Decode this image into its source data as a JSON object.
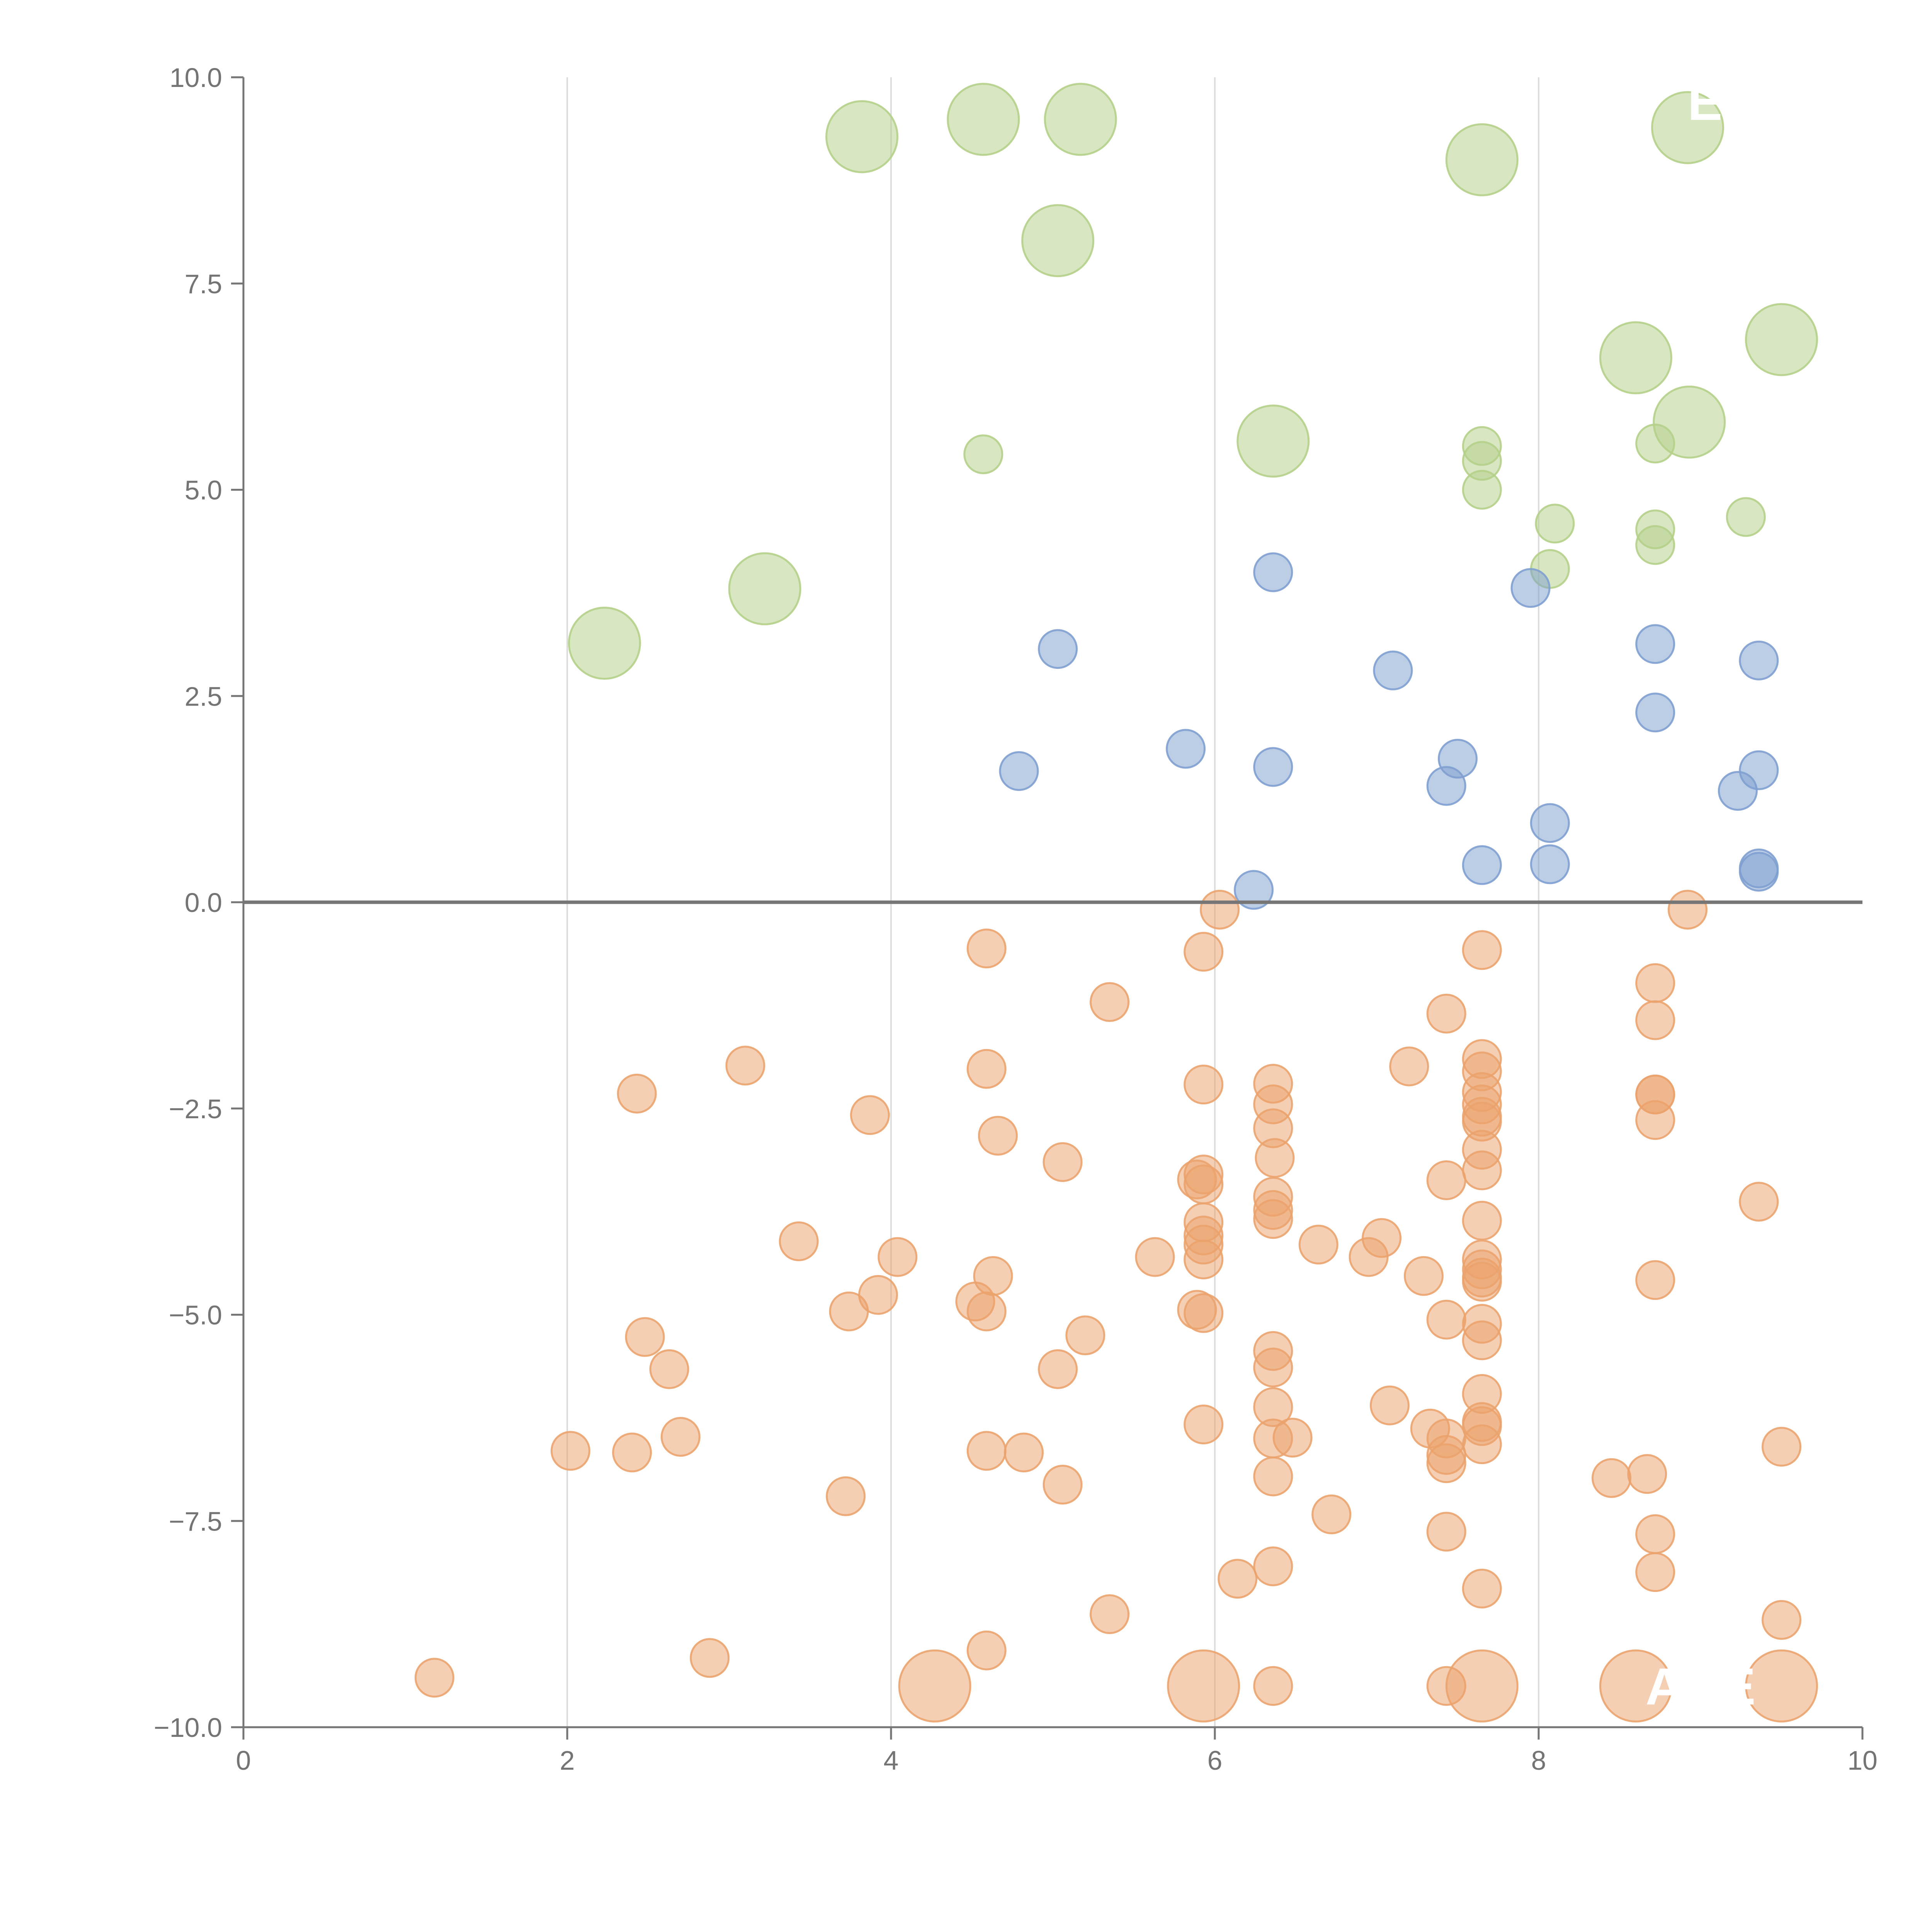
{
  "chart_data": {
    "type": "scatter",
    "title": "",
    "xlabel": "",
    "ylabel": "",
    "xlim": [
      0,
      10
    ],
    "ylim": [
      -10,
      10
    ],
    "x_ticks": [
      0,
      2,
      4,
      6,
      8,
      10
    ],
    "x_tick_labels": [
      "0",
      "2",
      "4",
      "6",
      "8",
      "10"
    ],
    "y_ticks": [
      10,
      7.5,
      5,
      2.5,
      0,
      -2.5,
      -5,
      -7.5,
      -10
    ],
    "y_tick_labels": [
      "10.0",
      "7.5",
      "5.0",
      "2.5",
      "0.0",
      "−2.5",
      "−5.0",
      "−7.5",
      "−10.0"
    ],
    "grid": "vertical",
    "zero_line": true,
    "colors": {
      "green": "#b5d08a",
      "blue": "#7fa0d0",
      "orange": "#eba36e",
      "axis": "#767676",
      "grid": "#dcdcdc"
    },
    "series": [
      {
        "color": "green",
        "points": [
          [
            3.82,
            9.28,
            "L"
          ],
          [
            4.57,
            9.49,
            "L"
          ],
          [
            5.17,
            9.49,
            "L"
          ],
          [
            5.03,
            8.02,
            "L"
          ],
          [
            7.65,
            9.0,
            "L"
          ],
          [
            8.92,
            9.39,
            "L"
          ],
          [
            8.6,
            6.6,
            "L"
          ],
          [
            9.5,
            6.82,
            "L"
          ],
          [
            8.93,
            5.82,
            "L"
          ],
          [
            6.36,
            5.59,
            "L"
          ],
          [
            3.22,
            3.8,
            "L"
          ],
          [
            2.23,
            3.14,
            "L"
          ],
          [
            4.57,
            5.43,
            "S"
          ],
          [
            7.65,
            5.53,
            "S"
          ],
          [
            7.65,
            5.35,
            "S"
          ],
          [
            7.65,
            5.0,
            "S"
          ],
          [
            8.72,
            5.56,
            "S"
          ],
          [
            8.1,
            4.59,
            "S"
          ],
          [
            8.07,
            4.04,
            "S"
          ],
          [
            8.72,
            4.52,
            "S"
          ],
          [
            8.72,
            4.33,
            "S"
          ],
          [
            9.28,
            4.67,
            "S"
          ]
        ]
      },
      {
        "color": "blue",
        "points": [
          [
            6.36,
            4.0
          ],
          [
            7.95,
            3.81
          ],
          [
            5.03,
            3.07
          ],
          [
            7.1,
            2.81
          ],
          [
            8.72,
            3.13
          ],
          [
            9.36,
            2.93
          ],
          [
            8.72,
            2.3
          ],
          [
            5.82,
            1.86
          ],
          [
            4.79,
            1.59
          ],
          [
            6.36,
            1.64
          ],
          [
            7.5,
            1.74
          ],
          [
            7.43,
            1.41
          ],
          [
            9.23,
            1.35
          ],
          [
            9.36,
            1.6
          ],
          [
            8.07,
            0.96
          ],
          [
            7.65,
            0.45
          ],
          [
            8.07,
            0.46
          ],
          [
            9.36,
            0.41
          ],
          [
            9.36,
            0.37
          ],
          [
            6.24,
            0.15
          ]
        ]
      },
      {
        "color": "orange",
        "points": [
          [
            6.03,
            -0.09
          ],
          [
            8.92,
            -0.09
          ],
          [
            4.59,
            -0.56
          ],
          [
            5.93,
            -0.6
          ],
          [
            7.65,
            -0.58
          ],
          [
            5.35,
            -1.21
          ],
          [
            7.43,
            -1.35
          ],
          [
            8.72,
            -0.98
          ],
          [
            8.72,
            -1.43
          ],
          [
            3.1,
            -1.98
          ],
          [
            4.59,
            -2.02
          ],
          [
            7.2,
            -1.99
          ],
          [
            7.65,
            -1.9
          ],
          [
            7.65,
            -2.05
          ],
          [
            2.43,
            -2.32
          ],
          [
            5.93,
            -2.21
          ],
          [
            6.36,
            -2.2
          ],
          [
            6.36,
            -2.45
          ],
          [
            7.65,
            -2.3
          ],
          [
            7.65,
            -2.45
          ],
          [
            8.72,
            -2.33
          ],
          [
            8.72,
            -2.33
          ],
          [
            3.87,
            -2.58
          ],
          [
            4.66,
            -2.83
          ],
          [
            6.36,
            -2.74
          ],
          [
            7.65,
            -2.6
          ],
          [
            7.65,
            -2.66
          ],
          [
            8.72,
            -2.64
          ],
          [
            5.06,
            -3.15
          ],
          [
            6.37,
            -3.1
          ],
          [
            7.65,
            -3.0
          ],
          [
            7.65,
            -3.25
          ],
          [
            5.93,
            -3.3
          ],
          [
            5.93,
            -3.42
          ],
          [
            5.89,
            -3.36
          ],
          [
            7.43,
            -3.37
          ],
          [
            6.36,
            -3.57
          ],
          [
            6.36,
            -3.73
          ],
          [
            6.36,
            -3.84
          ],
          [
            9.36,
            -3.63
          ],
          [
            7.65,
            -3.86
          ],
          [
            5.93,
            -3.88
          ],
          [
            5.93,
            -4.04
          ],
          [
            5.93,
            -4.15
          ],
          [
            3.43,
            -4.11
          ],
          [
            6.64,
            -4.15
          ],
          [
            7.03,
            -4.07
          ],
          [
            4.04,
            -4.3
          ],
          [
            5.63,
            -4.3
          ],
          [
            5.93,
            -4.33
          ],
          [
            6.95,
            -4.3
          ],
          [
            7.65,
            -4.33
          ],
          [
            7.65,
            -4.45
          ],
          [
            7.65,
            -4.55
          ],
          [
            7.29,
            -4.53
          ],
          [
            4.63,
            -4.53
          ],
          [
            7.65,
            -4.6
          ],
          [
            8.72,
            -4.58
          ],
          [
            3.92,
            -4.76
          ],
          [
            4.52,
            -4.84
          ],
          [
            4.59,
            -4.96
          ],
          [
            3.74,
            -4.96
          ],
          [
            5.89,
            -4.94
          ],
          [
            5.93,
            -4.98
          ],
          [
            7.43,
            -5.06
          ],
          [
            7.65,
            -5.11
          ],
          [
            7.65,
            -5.31
          ],
          [
            2.48,
            -5.27
          ],
          [
            5.2,
            -5.25
          ],
          [
            6.36,
            -5.44
          ],
          [
            6.36,
            -5.64
          ],
          [
            2.63,
            -5.66
          ],
          [
            5.03,
            -5.66
          ],
          [
            7.65,
            -5.96
          ],
          [
            7.08,
            -6.1
          ],
          [
            6.36,
            -6.12
          ],
          [
            7.65,
            -6.3
          ],
          [
            7.65,
            -6.35
          ],
          [
            7.65,
            -6.57
          ],
          [
            5.93,
            -6.33
          ],
          [
            7.33,
            -6.38
          ],
          [
            7.43,
            -6.5
          ],
          [
            7.43,
            -6.7
          ],
          [
            7.43,
            -6.8
          ],
          [
            6.48,
            -6.49
          ],
          [
            6.36,
            -6.5
          ],
          [
            2.7,
            -6.48
          ],
          [
            2.02,
            -6.65
          ],
          [
            2.4,
            -6.67
          ],
          [
            4.59,
            -6.65
          ],
          [
            4.82,
            -6.67
          ],
          [
            9.5,
            -6.6
          ],
          [
            6.36,
            -6.96
          ],
          [
            5.06,
            -7.06
          ],
          [
            8.45,
            -6.98
          ],
          [
            8.67,
            -6.93
          ],
          [
            3.72,
            -7.2
          ],
          [
            6.72,
            -7.42
          ],
          [
            7.43,
            -7.63
          ],
          [
            8.72,
            -7.66
          ],
          [
            6.36,
            -8.05
          ],
          [
            6.14,
            -8.2
          ],
          [
            8.72,
            -8.12
          ],
          [
            7.65,
            -8.32
          ],
          [
            5.35,
            -8.63
          ],
          [
            9.5,
            -8.7
          ],
          [
            4.59,
            -9.07
          ],
          [
            2.88,
            -9.16
          ],
          [
            1.18,
            -9.4
          ],
          [
            6.36,
            -9.5
          ],
          [
            7.43,
            -9.5
          ],
          [
            4.27,
            -9.5,
            "L"
          ],
          [
            5.93,
            -9.5,
            "L"
          ],
          [
            7.65,
            -9.5,
            "L"
          ],
          [
            8.6,
            -9.5,
            "L"
          ],
          [
            9.5,
            -9.5,
            "L"
          ]
        ]
      }
    ],
    "annotations": [
      "AHE",
      "E"
    ]
  }
}
